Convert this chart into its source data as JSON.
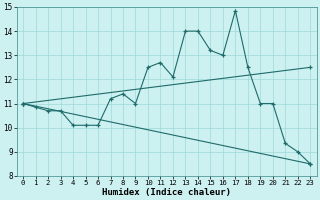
{
  "xlabel": "Humidex (Indice chaleur)",
  "xlim": [
    0,
    23
  ],
  "ylim": [
    8,
    15
  ],
  "yticks": [
    8,
    9,
    10,
    11,
    12,
    13,
    14,
    15
  ],
  "xticks": [
    0,
    1,
    2,
    3,
    4,
    5,
    6,
    7,
    8,
    9,
    10,
    11,
    12,
    13,
    14,
    15,
    16,
    17,
    18,
    19,
    20,
    21,
    22,
    23
  ],
  "bg_color": "#cdf0f0",
  "line_color": "#1e6b6b",
  "lines": [
    {
      "x": [
        0,
        1,
        2,
        3,
        4,
        5,
        6,
        7,
        8,
        9,
        10,
        11,
        12,
        13,
        14,
        15,
        16,
        17,
        18,
        19,
        20,
        21,
        22,
        23
      ],
      "y": [
        11,
        10.85,
        10.7,
        10.7,
        10.1,
        10.1,
        10.1,
        11.2,
        11.4,
        11.0,
        12.5,
        12.7,
        12.1,
        14.0,
        14.0,
        13.2,
        13.0,
        14.85,
        12.5,
        11.0,
        11.0,
        9.35,
        9.0,
        8.5
      ]
    },
    {
      "x": [
        0,
        23
      ],
      "y": [
        11,
        12.5
      ]
    },
    {
      "x": [
        0,
        23
      ],
      "y": [
        11,
        8.5
      ]
    }
  ]
}
